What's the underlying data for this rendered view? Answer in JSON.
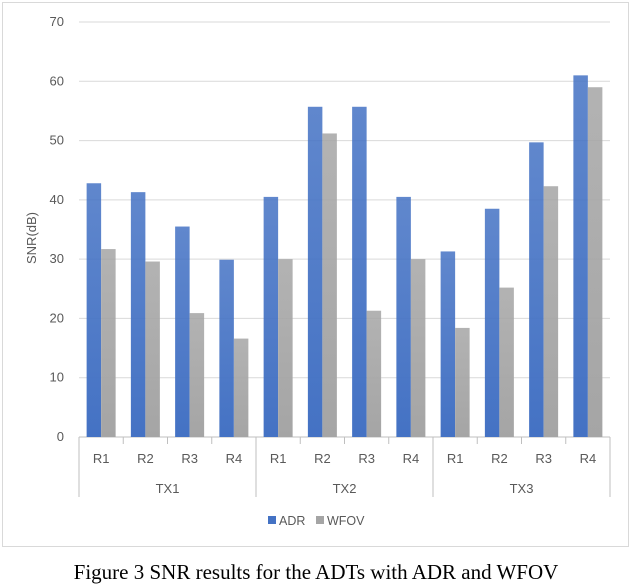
{
  "chart_data": {
    "type": "bar",
    "ylabel": "SNR(dB)",
    "ylim": [
      0,
      70
    ],
    "yticks": [
      0,
      10,
      20,
      30,
      40,
      50,
      60,
      70
    ],
    "groups": [
      {
        "label": "TX1",
        "categories": [
          "R1",
          "R2",
          "R3",
          "R4"
        ]
      },
      {
        "label": "TX2",
        "categories": [
          "R1",
          "R2",
          "R3",
          "R4"
        ]
      },
      {
        "label": "TX3",
        "categories": [
          "R1",
          "R2",
          "R3",
          "R4"
        ]
      }
    ],
    "series": [
      {
        "name": "ADR",
        "color": "#4472C4",
        "values": [
          42.8,
          41.3,
          35.5,
          29.9,
          40.5,
          55.7,
          55.7,
          40.5,
          31.3,
          38.5,
          49.7,
          61.0
        ]
      },
      {
        "name": "WFOV",
        "color": "#A5A5A5",
        "values": [
          31.7,
          29.6,
          20.9,
          16.6,
          30.0,
          51.2,
          21.3,
          30.0,
          18.4,
          25.2,
          42.3,
          59.0
        ]
      }
    ],
    "legend_position": "bottom",
    "grid": true
  },
  "caption": "Figure 3 SNR results for the ADTs with ADR and WFOV"
}
